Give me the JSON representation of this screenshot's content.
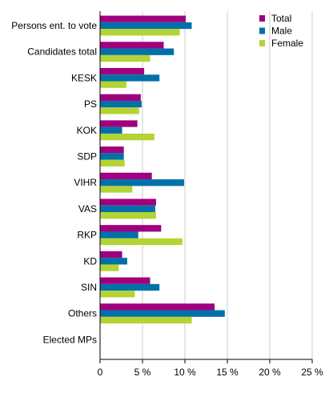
{
  "chart_data": {
    "type": "bar",
    "orientation": "horizontal",
    "categories": [
      "Persons ent. to vote",
      "Candidates total",
      "KESK",
      "PS",
      "KOK",
      "SDP",
      "VIHR",
      "VAS",
      "RKP",
      "KD",
      "SIN",
      "Others",
      "Elected MPs"
    ],
    "series": [
      {
        "name": "Total",
        "color": "#a0007f",
        "values": [
          10.1,
          7.5,
          5.2,
          4.8,
          4.4,
          2.8,
          6.1,
          6.6,
          7.2,
          2.6,
          5.9,
          13.5,
          0
        ]
      },
      {
        "name": "Male",
        "color": "#0070a8",
        "values": [
          10.8,
          8.7,
          7.0,
          4.9,
          2.6,
          2.8,
          9.9,
          6.5,
          4.5,
          3.2,
          7.0,
          14.7,
          0
        ]
      },
      {
        "name": "Female",
        "color": "#b4d334",
        "values": [
          9.4,
          5.9,
          3.1,
          4.6,
          6.4,
          2.9,
          3.8,
          6.6,
          9.7,
          2.2,
          4.1,
          10.8,
          0
        ]
      }
    ],
    "xlim": [
      0,
      25
    ],
    "xticks": [
      0,
      5,
      10,
      15,
      20,
      25
    ],
    "xtick_labels": [
      "0",
      "5 %",
      "10 %",
      "15 %",
      "20 %",
      "25 %"
    ],
    "grid": "vertical",
    "legend_position": "top-right"
  }
}
